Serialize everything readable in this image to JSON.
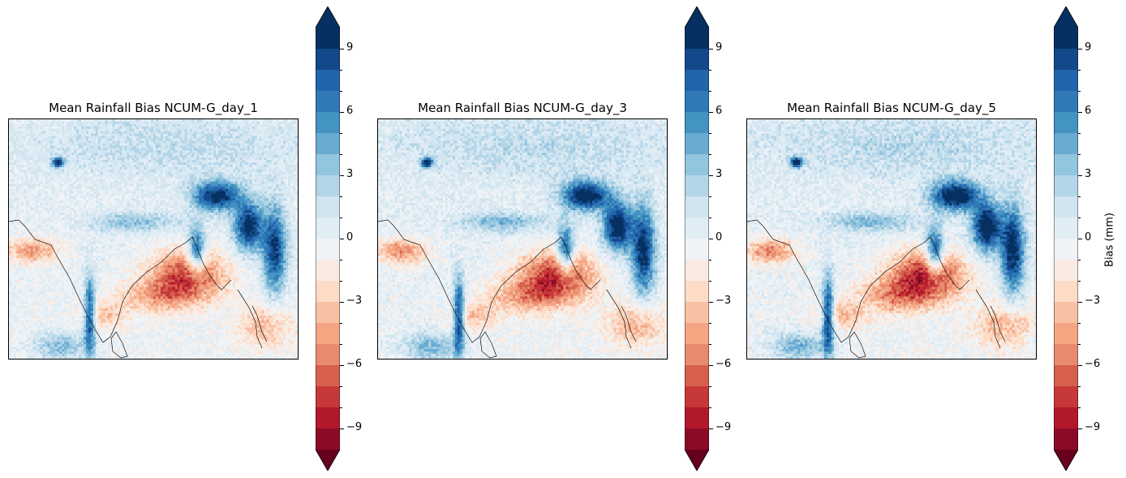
{
  "chart_data": [
    {
      "type": "heatmap",
      "title": "Mean Rainfall Bias NCUM-G_day_1",
      "colorbar": {
        "ticks": [
          "−9",
          "−6",
          "−3",
          "0",
          "3",
          "6",
          "9"
        ],
        "label": ""
      }
    },
    {
      "type": "heatmap",
      "title": "Mean Rainfall Bias NCUM-G_day_3",
      "colorbar": {
        "ticks": [
          "−9",
          "−6",
          "−3",
          "0",
          "3",
          "6",
          "9"
        ],
        "label": ""
      }
    },
    {
      "type": "heatmap",
      "title": "Mean Rainfall Bias NCUM-G_day_5",
      "colorbar": {
        "ticks": [
          "−9",
          "−6",
          "−3",
          "0",
          "3",
          "6",
          "9"
        ],
        "label": "Bias (mm)"
      }
    }
  ],
  "colormap": {
    "name": "RdBu",
    "range": [
      -10,
      10
    ],
    "levels": 20,
    "extend": "both",
    "colors": [
      "#67001f",
      "#8b0a26",
      "#b2182b",
      "#c6383a",
      "#d6604d",
      "#e88a6f",
      "#f4a582",
      "#f8c1a3",
      "#fddbc7",
      "#f9ebe2",
      "#f0f3f6",
      "#e1edf5",
      "#d1e5f0",
      "#b3d5e8",
      "#92c5de",
      "#6aabd2",
      "#4393c3",
      "#3079b7",
      "#2166ac",
      "#13488a",
      "#053061"
    ]
  }
}
